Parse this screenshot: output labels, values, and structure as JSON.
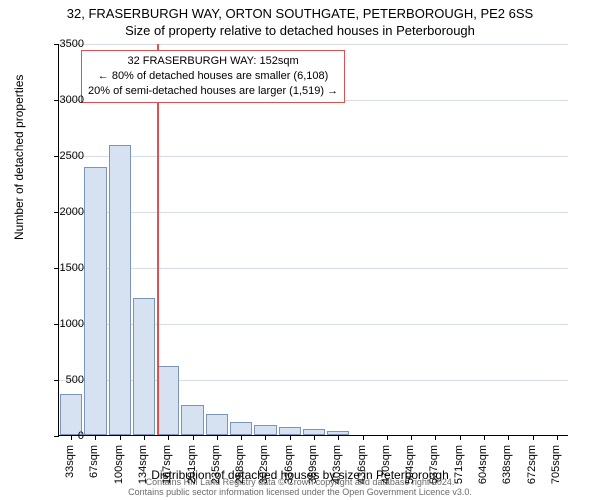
{
  "title": {
    "main": "32, FRASERBURGH WAY, ORTON SOUTHGATE, PETERBOROUGH, PE2 6SS",
    "sub": "Size of property relative to detached houses in Peterborough"
  },
  "chart": {
    "type": "histogram",
    "ylabel": "Number of detached properties",
    "xlabel": "Distribution of detached houses by size in Peterborough",
    "ylim": [
      0,
      3500
    ],
    "ytick_step": 500,
    "xticks": [
      "33sqm",
      "67sqm",
      "100sqm",
      "134sqm",
      "167sqm",
      "201sqm",
      "235sqm",
      "268sqm",
      "302sqm",
      "336sqm",
      "369sqm",
      "403sqm",
      "436sqm",
      "470sqm",
      "504sqm",
      "537sqm",
      "571sqm",
      "604sqm",
      "638sqm",
      "672sqm",
      "705sqm"
    ],
    "values": [
      370,
      2390,
      2590,
      1220,
      620,
      270,
      190,
      120,
      90,
      70,
      50,
      40,
      0,
      0,
      0,
      0,
      0,
      0,
      0,
      0,
      0
    ],
    "bar_fill": "#d6e2f1",
    "bar_stroke": "#7a95b8",
    "grid_color": "#d6dde6",
    "background_color": "#ffffff",
    "label_fontsize": 12,
    "tick_fontsize": 11,
    "marker": {
      "index_after": 3.55,
      "color": "#e05050",
      "annotation": {
        "line1": "32 FRASERBURGH WAY: 152sqm",
        "line2": "← 80% of detached houses are smaller (6,108)",
        "line3": "20% of semi-detached houses are larger (1,519) →"
      }
    }
  },
  "footer": {
    "line1": "Contains HM Land Registry data © Crown copyright and database right 2024.",
    "line2": "Contains public sector information licensed under the Open Government Licence v3.0."
  }
}
